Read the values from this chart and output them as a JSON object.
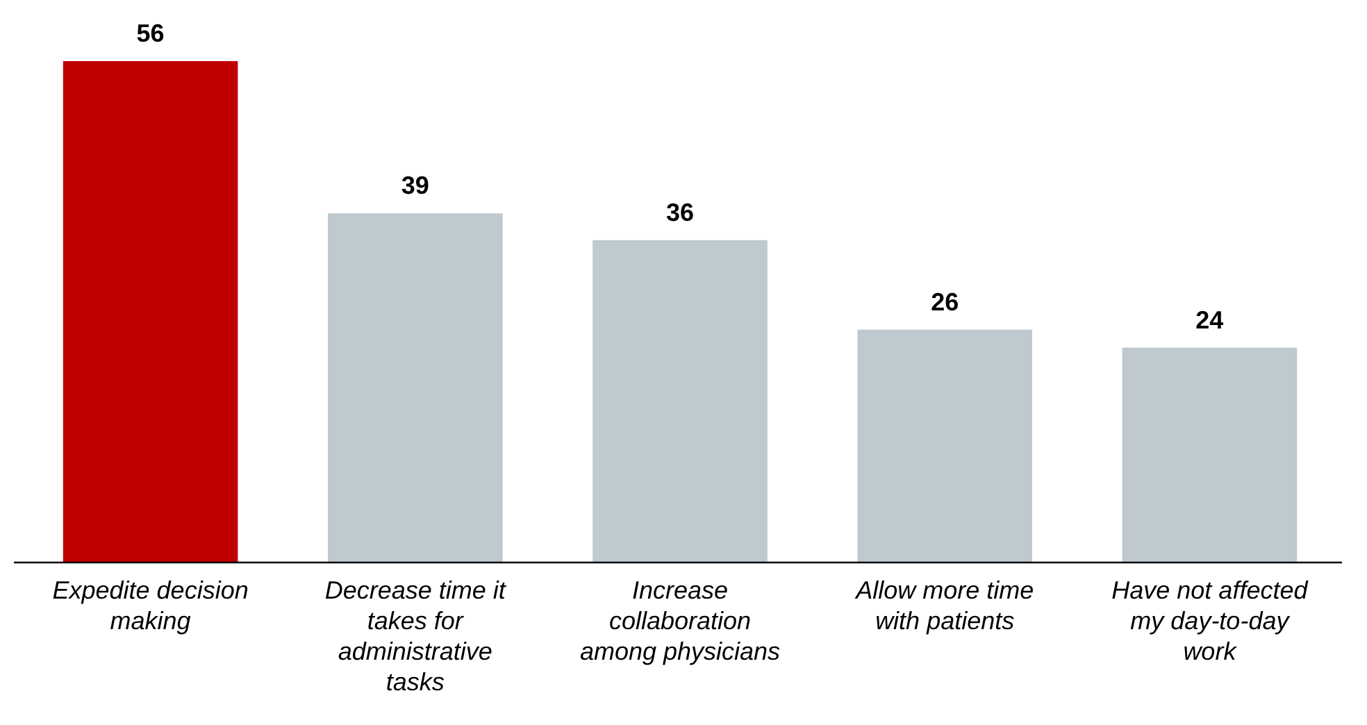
{
  "chart_data": {
    "type": "bar",
    "categories": [
      "Expedite decision making",
      "Decrease time it takes for administrative tasks",
      "Increase collaboration among physicians",
      "Allow more time with patients",
      "Have not affected my day-to-day work"
    ],
    "values": [
      56,
      39,
      36,
      26,
      24
    ],
    "colors": [
      "#c00000",
      "#bfc9d0",
      "#bfc9d0",
      "#bfc9d0",
      "#bfc9d0"
    ],
    "data_labels": true
  }
}
